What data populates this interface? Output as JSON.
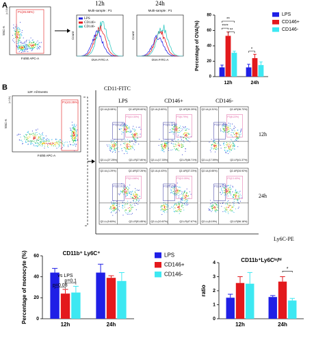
{
  "chart_data": [
    {
      "type": "bar",
      "ylabel": "Percentage of OVA(%)",
      "categories": [
        "12h",
        "24h"
      ],
      "series": [
        {
          "name": "LPS",
          "color": "#1f1fe6",
          "values": [
            12,
            12
          ],
          "errors": [
            3,
            4
          ]
        },
        {
          "name": "CD146+",
          "color": "#e3191c",
          "values": [
            53,
            24
          ],
          "errors": [
            5,
            5
          ]
        },
        {
          "name": "CD146-",
          "color": "#3de8f2",
          "values": [
            31,
            15
          ],
          "errors": [
            2,
            4
          ]
        }
      ],
      "ylim": [
        0,
        80
      ],
      "yticks": [
        0,
        20,
        40,
        60,
        80
      ],
      "legend": "right",
      "annotations": [
        "**",
        "****",
        "**",
        "*"
      ]
    },
    {
      "type": "bar",
      "title": "CD11b⁺ Ly6C⁺",
      "ylabel": "Percentage of monocyte (%)",
      "categories": [
        "12h",
        "24h"
      ],
      "series": [
        {
          "name": "LPS",
          "color": "#1f1fe6",
          "values": [
            44,
            44
          ],
          "errors": [
            4,
            8
          ]
        },
        {
          "name": "CD146+",
          "color": "#e3191c",
          "values": [
            24,
            39
          ],
          "errors": [
            4,
            2
          ]
        },
        {
          "name": "CD146-",
          "color": "#3de8f2",
          "values": [
            25,
            36
          ],
          "errors": [
            6,
            8
          ]
        }
      ],
      "ylim": [
        0,
        60
      ],
      "yticks": [
        0,
        20,
        40,
        60
      ],
      "legend": "right",
      "annotations": [
        "vs LPS",
        "p=0.08",
        "p=0.1"
      ]
    },
    {
      "type": "bar",
      "title": "CD11b⁺Ly6Cˡᵒ/ʰⁱ",
      "ylabel": "ratio",
      "categories": [
        "12h",
        "24h"
      ],
      "series": [
        {
          "name": "LPS",
          "color": "#1f1fe6",
          "values": [
            1.5,
            1.55
          ],
          "errors": [
            0.25,
            0.1
          ]
        },
        {
          "name": "CD146+",
          "color": "#e3191c",
          "values": [
            2.55,
            2.65
          ],
          "errors": [
            0.45,
            0.35
          ]
        },
        {
          "name": "CD146-",
          "color": "#3de8f2",
          "values": [
            2.5,
            1.3
          ],
          "errors": [
            0.8,
            0.15
          ]
        }
      ],
      "ylim": [
        0,
        4
      ],
      "yticks": [
        0,
        1,
        2,
        3,
        4
      ],
      "annotations": [
        "*"
      ]
    }
  ],
  "panel_labels": [
    "A",
    "B"
  ],
  "panel_a": {
    "ssc_label": "SSC-A",
    "scale_label": "(x 10³)",
    "gate": "P1(26.66%)",
    "x_label": "F4/80 APC-A",
    "histograms": [
      {
        "title": "12h",
        "subtitle": "Multi-sample : P1"
      },
      {
        "title": "24h",
        "subtitle": "Multi-sample : P1"
      }
    ],
    "hist_legend": [
      {
        "name": "LPS",
        "color": "#1f1fe6"
      },
      {
        "name": "CD146+",
        "color": "#e3191c"
      },
      {
        "name": "CD146-",
        "color": "#2fc9c2"
      }
    ],
    "hist_x": "OVA FITC-A",
    "hist_y": "Count"
  },
  "panel_b": {
    "events": "12#: All Events",
    "gate": "P1(43.25%)",
    "ssc_label": "SSC-A",
    "scale_label": "(x 10³)",
    "x_label": "F4/80 APC-A",
    "y_axis": "CD11-FITC",
    "x_axis": "Ly6C-PE",
    "columns": [
      "LPS",
      "CD146+",
      "CD146-"
    ],
    "rows": [
      "12h",
      "24h"
    ],
    "plots": [
      [
        {
          "ul": "Q2-UL(5.08%)",
          "ur": "Q2-UR(39.60%)",
          "ll": "Q2-LL(27.25%)",
          "lr": "Q2-LR(27.80%)",
          "p2": "P2(22.62%)",
          "p3": "P3(10.30%)"
        },
        {
          "ul": "Q2-UL(3.60%)",
          "ur": "Q2-UR(30.39%)",
          "ll": "Q2-LL(17.33%)",
          "lr": "Q2-LR(48.71%)",
          "p2": "P2(22.37%)",
          "p3": "P3(6.79%)"
        },
        {
          "ul": "Q2-UL(4.31%)",
          "ur": "Q2-UR(36.73%)",
          "ll": "Q2-LL(17.59%)",
          "lr": "Q2-LR(41.37%)",
          "p2": "P2(27.60%)",
          "p3": "P3(8.22%)"
        }
      ],
      [
        {
          "ul": "Q2-UL(1.29%)",
          "ur": "Q2-UR(37.26%)",
          "ll": "Q2-LL(9.60%)",
          "lr": "Q2-LR(51.85%)",
          "p2": "P2(22.01%)",
          "p3": "P3(14.66%)"
        },
        {
          "ul": "Q2-UL(4.43%)",
          "ur": "Q2-UR(37.23%)",
          "ll": "Q2-LL(10.67%)",
          "lr": "Q2-LR(47.67%)",
          "p2": "P2(25.25%)",
          "p3": "P3(10.05%)"
        },
        {
          "ul": "Q2-UL(0.65%)",
          "ur": "Q2-UR(34.92%)",
          "ll": "Q2-LL(8.19%)",
          "lr": "Q2-LR(56.18%)",
          "p2": "P2(19.57%)",
          "p3": "P3(13.40%)"
        }
      ]
    ]
  }
}
